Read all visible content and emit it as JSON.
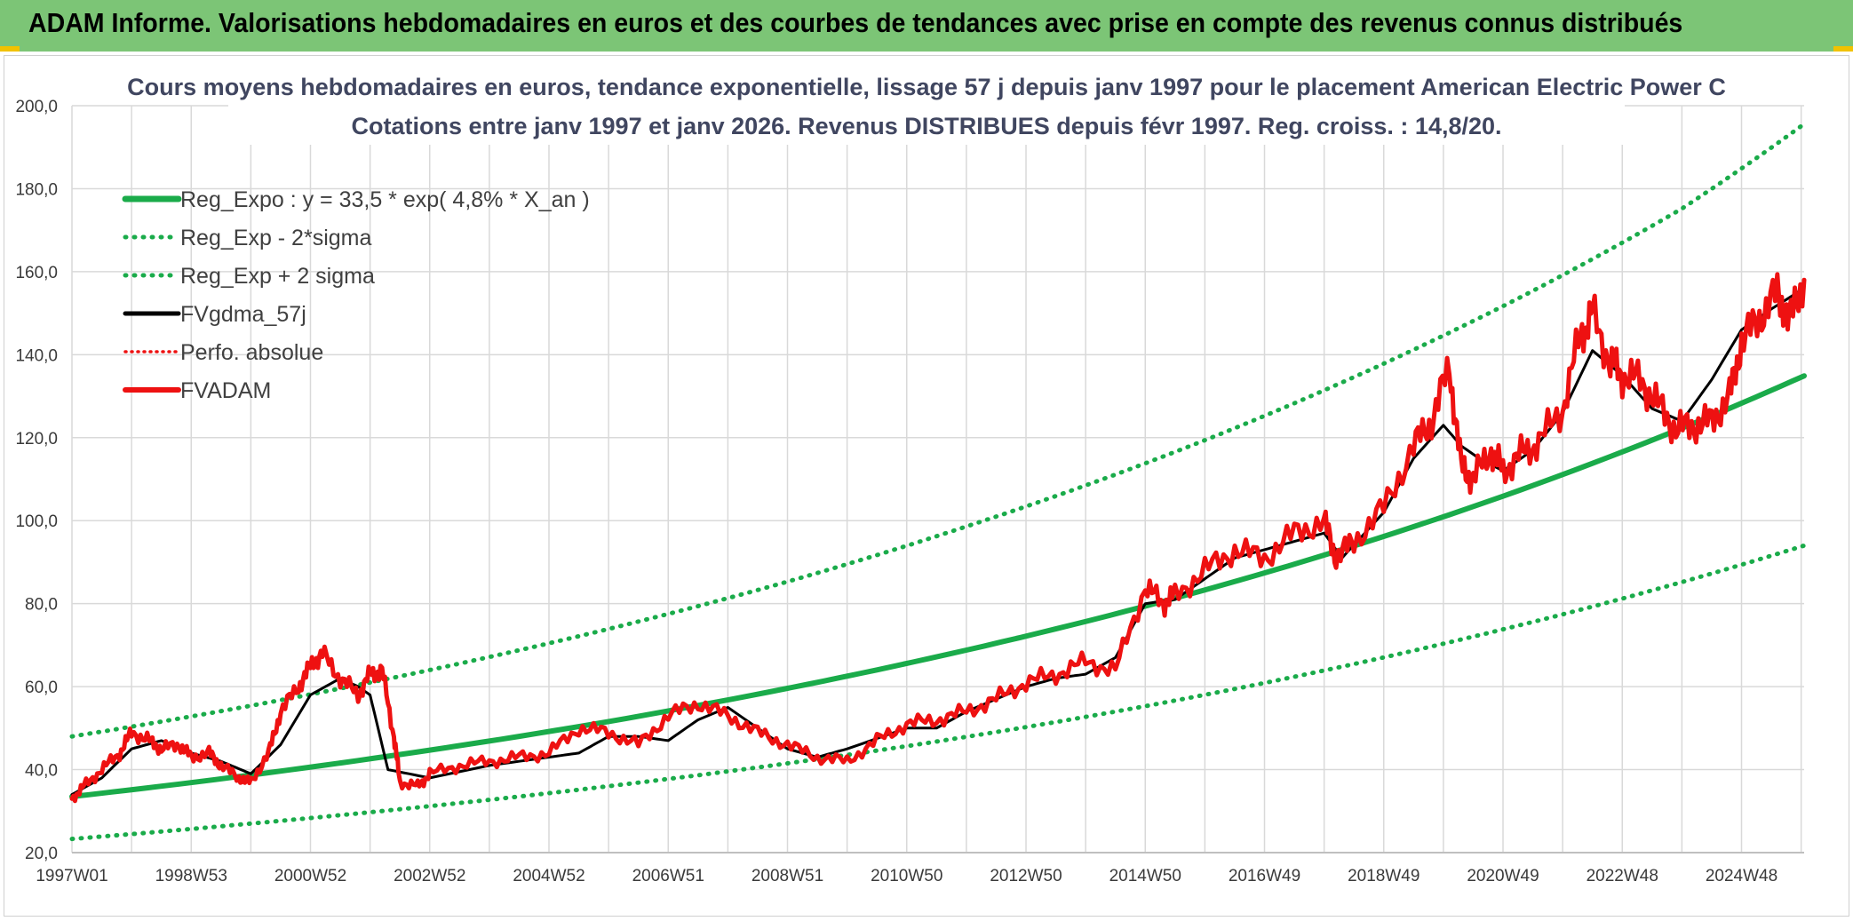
{
  "banner": {
    "title": "ADAM Informe. Valorisations hebdomadaires en euros et des courbes de tendances avec prise en compte des revenus connus distribués"
  },
  "colors": {
    "banner_bg": "#7cc576",
    "trend": "#1aab4a",
    "price": "#ee1111",
    "smooth": "#000000",
    "grid": "#d9d9d9"
  },
  "chart_data": {
    "type": "line",
    "title": "Cours moyens hebdomadaires en euros, tendance exponentielle, lissage 57 j depuis janv 1997 pour le placement American Electric Power C",
    "subtitle": "Cotations entre janv 1997 et janv 2026. Revenus DISTRIBUES depuis févr 1997. Reg. croiss. : 14,8/20.",
    "xlabel": "",
    "ylabel": "",
    "ylim": [
      20,
      200
    ],
    "xlim": [
      1997.0,
      2026.05
    ],
    "grid": true,
    "legend_position": "top-left",
    "yticks": [
      "20,0",
      "40,0",
      "60,0",
      "80,0",
      "100,0",
      "120,0",
      "140,0",
      "160,0",
      "180,0",
      "200,0"
    ],
    "ytick_values": [
      20,
      40,
      60,
      80,
      100,
      120,
      140,
      160,
      180,
      200
    ],
    "xticks": [
      "1997W01",
      "1998W53",
      "2000W52",
      "2002W52",
      "2004W52",
      "2006W51",
      "2008W51",
      "2010W50",
      "2012W50",
      "2014W50",
      "2016W49",
      "2018W49",
      "2020W49",
      "2022W48",
      "2024W48"
    ],
    "xtick_values": [
      1997.0,
      1999.0,
      2001.0,
      2003.0,
      2005.0,
      2007.0,
      2009.0,
      2011.0,
      2013.0,
      2015.0,
      2017.0,
      2019.0,
      2021.0,
      2023.0,
      2025.0
    ],
    "legend": [
      {
        "label": "Reg_Expo : y = 33,5 * exp( 4,8% *  X_an )",
        "style": "solid-thick-green"
      },
      {
        "label": "Reg_Exp - 2*sigma",
        "style": "dotted-green"
      },
      {
        "label": "Reg_Exp + 2 sigma",
        "style": "dotted-green"
      },
      {
        "label": "FVgdma_57j",
        "style": "solid-black"
      },
      {
        "label": "Perfo. absolue",
        "style": "dotted-red"
      },
      {
        "label": "FVADAM",
        "style": "solid-thick-red"
      }
    ],
    "series": [
      {
        "name": "Reg_Expo : y = 33,5 * exp( 4,8% *  X_an )",
        "x": [
          1997.0,
          2000.0,
          2003.0,
          2006.0,
          2009.0,
          2012.0,
          2015.0,
          2018.0,
          2021.0,
          2024.0,
          2026.05
        ],
        "y": [
          33.5,
          38.7,
          44.7,
          51.6,
          59.6,
          68.8,
          79.4,
          91.7,
          105.9,
          122.3,
          134.9
        ]
      },
      {
        "name": "Reg_Exp - 2*sigma",
        "x": [
          1997.0,
          2000.0,
          2003.0,
          2006.0,
          2009.0,
          2012.0,
          2015.0,
          2018.0,
          2021.0,
          2024.0,
          2026.05
        ],
        "y": [
          23.3,
          27.0,
          31.2,
          36.0,
          41.5,
          47.9,
          55.3,
          63.9,
          73.8,
          85.2,
          94.0
        ]
      },
      {
        "name": "Reg_Exp + 2 sigma",
        "x": [
          1997.0,
          2000.0,
          2003.0,
          2006.0,
          2009.0,
          2012.0,
          2015.0,
          2018.0,
          2021.0,
          2024.0,
          2026.05
        ],
        "y": [
          48.0,
          55.4,
          64.0,
          73.9,
          85.3,
          98.6,
          113.8,
          131.4,
          151.7,
          175.2,
          195.6
        ]
      },
      {
        "name": "FVgdma_57j",
        "x": [
          1997.0,
          1997.5,
          1998.0,
          1998.5,
          1999.0,
          1999.5,
          2000.0,
          2000.5,
          2001.0,
          2001.5,
          2001.8,
          2002.0,
          2002.3,
          2003.0,
          2004.0,
          2005.0,
          2005.5,
          2006.0,
          2006.5,
          2007.0,
          2007.5,
          2008.0,
          2009.0,
          2009.5,
          2010.0,
          2011.0,
          2011.5,
          2012.0,
          2013.0,
          2013.5,
          2014.0,
          2014.5,
          2015.0,
          2015.5,
          2016.0,
          2016.5,
          2017.0,
          2017.5,
          2018.0,
          2018.3,
          2019.0,
          2019.5,
          2020.0,
          2020.3,
          2020.6,
          2021.0,
          2021.5,
          2022.0,
          2022.5,
          2023.0,
          2023.5,
          2024.0,
          2024.5,
          2025.0,
          2025.5,
          2026.05
        ],
        "y": [
          34,
          38,
          45,
          47,
          44,
          42,
          39,
          46,
          58,
          62,
          60,
          58,
          40,
          38,
          41,
          43,
          44,
          48,
          48,
          47,
          52,
          55,
          45,
          43,
          45,
          50,
          50,
          54,
          60,
          62,
          63,
          67,
          80,
          81,
          86,
          91,
          93,
          95,
          97,
          91,
          102,
          115,
          123,
          118,
          115,
          112,
          117,
          126,
          141,
          135,
          127,
          124,
          134,
          146,
          151,
          156
        ]
      },
      {
        "name": "FVADAM",
        "x": [
          1997.0,
          1997.2,
          1997.5,
          1997.8,
          1998.0,
          1998.3,
          1998.5,
          1998.8,
          1999.0,
          1999.3,
          1999.5,
          1999.8,
          2000.0,
          2000.3,
          2000.5,
          2000.8,
          2001.0,
          2001.2,
          2001.5,
          2001.8,
          2002.0,
          2002.2,
          2002.4,
          2002.5,
          2002.8,
          2003.0,
          2003.5,
          2004.0,
          2004.5,
          2005.0,
          2005.5,
          2006.0,
          2006.5,
          2007.0,
          2007.5,
          2008.0,
          2008.5,
          2009.0,
          2009.5,
          2010.0,
          2010.5,
          2011.0,
          2011.5,
          2012.0,
          2012.5,
          2013.0,
          2013.5,
          2014.0,
          2014.5,
          2015.0,
          2015.3,
          2015.5,
          2016.0,
          2016.5,
          2017.0,
          2017.5,
          2018.0,
          2018.2,
          2018.5,
          2019.0,
          2019.5,
          2019.8,
          2020.1,
          2020.3,
          2020.5,
          2020.8,
          2021.0,
          2021.3,
          2021.6,
          2022.0,
          2022.3,
          2022.5,
          2022.8,
          2023.0,
          2023.3,
          2023.6,
          2023.9,
          2024.2,
          2024.5,
          2024.8,
          2025.0,
          2025.3,
          2025.6,
          2025.8,
          2026.05
        ],
        "y": [
          33,
          36,
          40,
          44,
          49,
          47,
          45,
          46,
          43,
          44,
          41,
          38,
          37,
          44,
          54,
          60,
          65,
          68,
          62,
          58,
          63,
          64,
          48,
          37,
          36,
          39,
          41,
          42,
          43,
          44,
          50,
          49,
          46,
          53,
          56,
          53,
          49,
          46,
          43,
          42,
          47,
          51,
          52,
          54,
          57,
          61,
          63,
          66,
          64,
          84,
          80,
          82,
          88,
          93,
          91,
          97,
          100,
          91,
          95,
          103,
          118,
          124,
          137,
          113,
          110,
          117,
          112,
          116,
          119,
          127,
          145,
          150,
          138,
          135,
          134,
          128,
          122,
          123,
          124,
          130,
          143,
          149,
          155,
          148,
          158
        ]
      }
    ]
  }
}
